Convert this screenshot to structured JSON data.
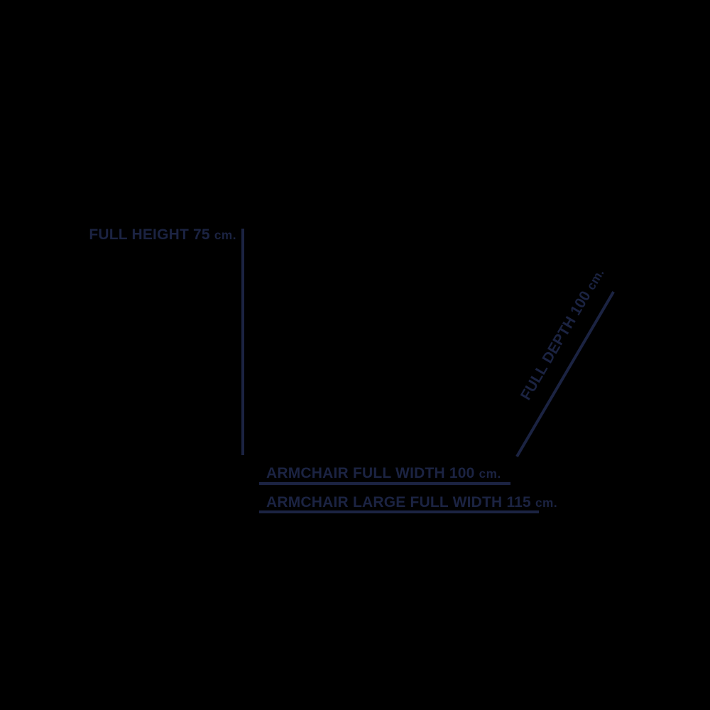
{
  "canvas": {
    "background_color": "#000000",
    "ink_color": "#1b2342",
    "description_title": "Armchair dimensions diagram"
  },
  "diagram": {
    "height_dimension": {
      "label": "FULL HEIGHT 75",
      "unit": "cm."
    },
    "depth_dimension": {
      "label": "FULL DEPTH 100",
      "unit": "cm."
    },
    "width_dimension": {
      "label": "ARMCHAIR FULL WIDTH 100",
      "unit": "cm."
    },
    "width_large_dimension": {
      "label": "ARMCHAIR LARGE FULL WIDTH 115",
      "unit": "cm."
    }
  }
}
